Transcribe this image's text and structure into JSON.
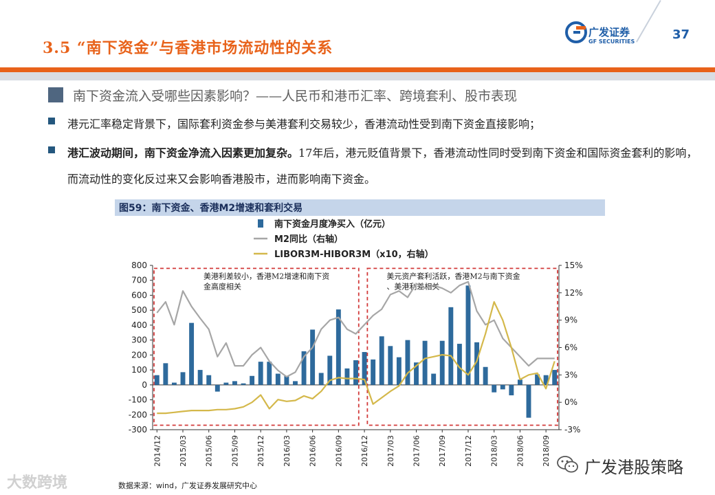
{
  "header": {
    "title": "3.5 “南下资金”与香港市场流动性的关系",
    "logo_cn": "广发证券",
    "logo_en": "GF SECURITIES",
    "page_number": "37"
  },
  "section": {
    "heading": "南下资金流入受哪些因素影响？——人民币和港币汇率、跨境套利、股市表现"
  },
  "bullets": [
    {
      "text": "港元汇率稳定背景下，国际套利资金参与美港套利交易较少，香港流动性受到南下资金直接影响；"
    },
    {
      "bold": "港汇波动期间，南下资金净流入因素更加复杂。",
      "text": "17年后，港元贬值背景下，香港流动性同时受到南下资金和国际资金套利的影响，而流动性的变化反过来又会影响香港股市，进而影响南下资金。"
    }
  ],
  "chart": {
    "title": "图59：南下资金、香港M2增速和套利交易",
    "legend": [
      "南下资金月度净买入（亿元）",
      "M2同比（右轴）",
      "LIBOR3M-HIBOR3M（x10，右轴）"
    ],
    "annotation_left": "美港利差较小，香港M2增速和南下资金高度相关",
    "annotation_right": "美元资产套利活跃，香港M2与南下资金、美港利差相关",
    "colors": {
      "bar": "#2e6a9c",
      "m2": "#a6a6a6",
      "spread": "#d4b84a",
      "box": "#d23a3a"
    }
  },
  "chart_data": {
    "type": "bar",
    "categories": [
      "2014/12",
      "2015/01",
      "2015/02",
      "2015/03",
      "2015/04",
      "2015/05",
      "2015/06",
      "2015/07",
      "2015/08",
      "2015/09",
      "2015/10",
      "2015/11",
      "2015/12",
      "2016/01",
      "2016/02",
      "2016/03",
      "2016/04",
      "2016/05",
      "2016/06",
      "2016/07",
      "2016/08",
      "2016/09",
      "2016/10",
      "2016/11",
      "2016/12",
      "2017/01",
      "2017/02",
      "2017/03",
      "2017/04",
      "2017/05",
      "2017/06",
      "2017/07",
      "2017/08",
      "2017/09",
      "2017/10",
      "2017/11",
      "2017/12",
      "2018/01",
      "2018/02",
      "2018/03",
      "2018/04",
      "2018/05",
      "2018/06",
      "2018/07",
      "2018/08",
      "2018/09",
      "2018/10"
    ],
    "x_tick_labels": [
      "2014/12",
      "2015/03",
      "2015/06",
      "2015/09",
      "2015/12",
      "2016/03",
      "2016/06",
      "2016/09",
      "2016/12",
      "2017/03",
      "2017/06",
      "2017/09",
      "2017/12",
      "2018/03",
      "2018/06",
      "2018/09"
    ],
    "series": [
      {
        "name": "南下资金月度净买入（亿元）",
        "type": "bar",
        "axis": "left",
        "values": [
          65,
          145,
          15,
          85,
          415,
          100,
          65,
          -45,
          15,
          25,
          10,
          60,
          155,
          155,
          75,
          60,
          25,
          225,
          370,
          80,
          195,
          505,
          110,
          165,
          220,
          170,
          325,
          260,
          185,
          300,
          150,
          295,
          75,
          295,
          520,
          275,
          665,
          285,
          120,
          -50,
          -30,
          -70,
          35,
          -220,
          70,
          65,
          100
        ]
      },
      {
        "name": "M2同比（右轴）",
        "type": "line",
        "axis": "right",
        "values": [
          9.8,
          11,
          8.5,
          12.2,
          10.5,
          9.2,
          8,
          5,
          6.5,
          4,
          4,
          5.2,
          6,
          4.5,
          3.5,
          2.8,
          3.3,
          5,
          6,
          8,
          9,
          9.3,
          8,
          7.5,
          8.5,
          9.5,
          10.2,
          11.8,
          12.2,
          11.5,
          13,
          12.5,
          12.8,
          12.5,
          12,
          12.8,
          13.2,
          10,
          8.5,
          9,
          7,
          6,
          5,
          4,
          4.8,
          4.8,
          4.8
        ]
      },
      {
        "name": "LIBOR3M-HIBOR3M（x10，右轴）",
        "type": "line",
        "axis": "right",
        "values": [
          -1.2,
          -1.2,
          -1.1,
          -1,
          -0.9,
          -0.9,
          -0.9,
          -0.8,
          -0.8,
          -0.7,
          -0.5,
          0,
          0.8,
          -0.7,
          0.3,
          0.1,
          0.2,
          0.7,
          0.4,
          1.2,
          2.4,
          2.7,
          2.6,
          2.6,
          2.5,
          -0.2,
          0.5,
          1.2,
          1.8,
          3.2,
          4,
          4.8,
          5,
          5.2,
          5.1,
          3.8,
          3,
          4.5,
          7.5,
          11,
          9,
          6,
          2.5,
          3,
          3.2,
          1.5,
          4.5
        ]
      }
    ],
    "ylim_left": [
      -300,
      800
    ],
    "yticks_left": [
      "800",
      "700",
      "600",
      "500",
      "400",
      "300",
      "200",
      "100",
      "0",
      "-100",
      "-200",
      "-300"
    ],
    "ylim_right": [
      -3,
      15
    ],
    "yticks_right": [
      "15%",
      "12%",
      "9%",
      "6%",
      "3%",
      "0%",
      "-3%"
    ],
    "legend_position": "top-left"
  },
  "footer": {
    "source": "数据来源：wind，广发证券发展研究中心",
    "watermark_left": "大数跨境",
    "watermark_right": "广发港股策略"
  }
}
